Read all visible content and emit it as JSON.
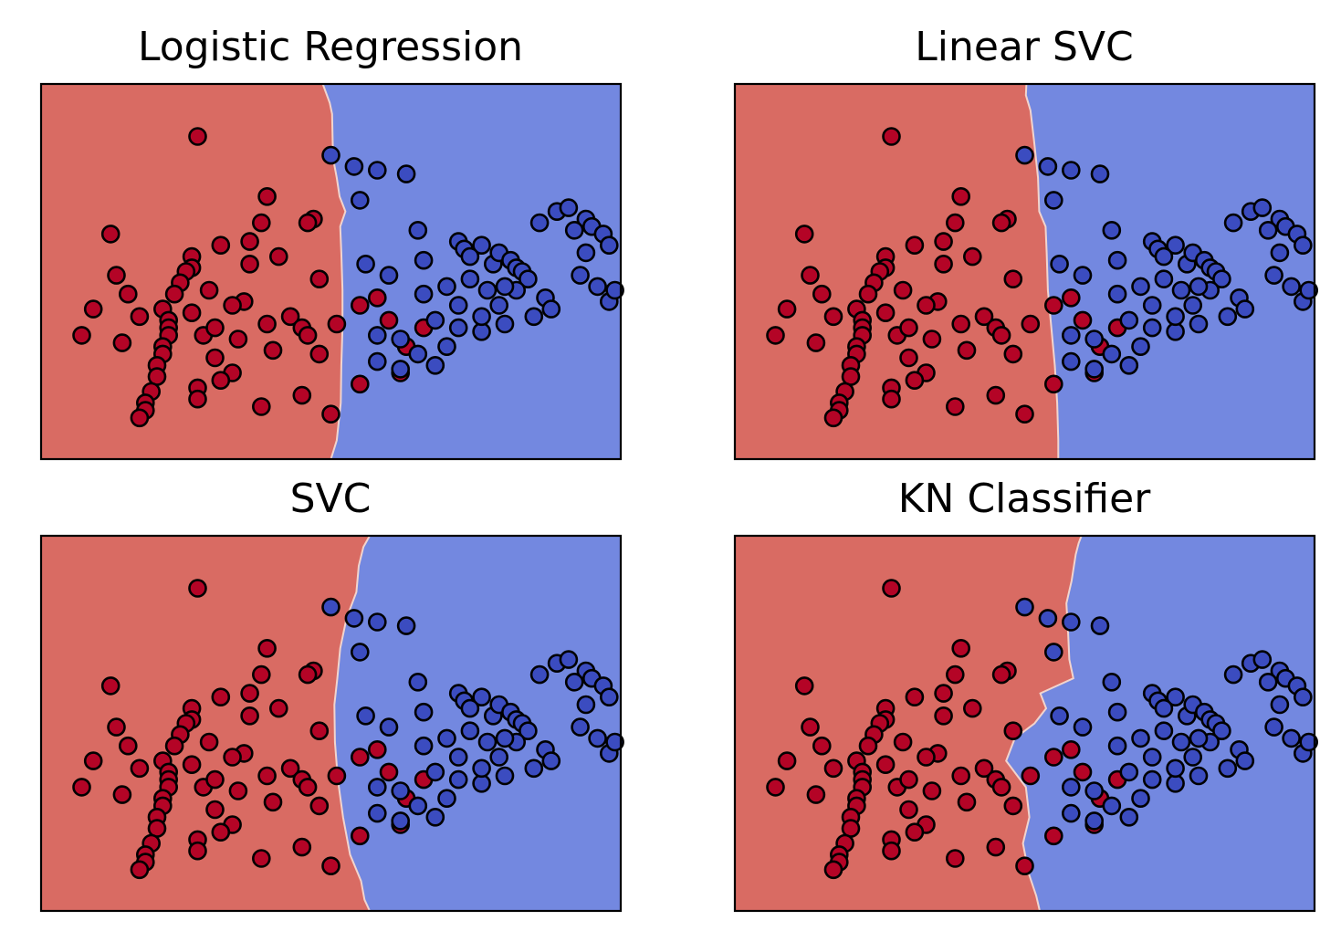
{
  "colors": {
    "class_a_region": "#d96b63",
    "class_b_region": "#7388e0",
    "class_a_point": "#b40426",
    "class_b_point": "#3b4cc0",
    "point_edge": "#000000",
    "boundary": "#f2d4cd",
    "frame": "#000000"
  },
  "chart_data": [
    {
      "type": "scatter",
      "title": "Logistic Regression",
      "xlabel": "",
      "ylabel": "",
      "xlim": [
        0,
        100
      ],
      "ylim": [
        0,
        100
      ],
      "grid": false,
      "ticks": false,
      "decision_regions": {
        "left": "class_a",
        "right": "class_b",
        "boundary": [
          [
            100,
            48.6
          ],
          [
            95,
            49.8
          ],
          [
            92,
            50.2
          ],
          [
            85,
            50.3
          ],
          [
            80,
            50.4
          ],
          [
            75,
            51.0
          ],
          [
            70,
            51.5
          ],
          [
            66,
            52.5
          ],
          [
            62,
            51.6
          ],
          [
            55,
            51.8
          ],
          [
            45,
            52.0
          ],
          [
            35,
            52.0
          ],
          [
            25,
            51.8
          ],
          [
            15,
            51.7
          ],
          [
            5,
            51.0
          ],
          [
            0,
            50.0
          ]
        ]
      }
    },
    {
      "type": "scatter",
      "title": "Linear SVC",
      "xlabel": "",
      "ylabel": "",
      "xlim": [
        0,
        100
      ],
      "ylim": [
        0,
        100
      ],
      "grid": false,
      "ticks": false,
      "decision_regions": {
        "left": "class_a",
        "right": "class_b",
        "boundary": [
          [
            100,
            50.3
          ],
          [
            97,
            50.2
          ],
          [
            93,
            51.0
          ],
          [
            85,
            51.6
          ],
          [
            75,
            52.3
          ],
          [
            66,
            52.5
          ],
          [
            62,
            53.6
          ],
          [
            55,
            53.8
          ],
          [
            45,
            54.0
          ],
          [
            35,
            54.6
          ],
          [
            25,
            55.2
          ],
          [
            15,
            55.6
          ],
          [
            5,
            55.8
          ],
          [
            0,
            55.8
          ]
        ]
      }
    },
    {
      "type": "scatter",
      "title": "SVC",
      "xlabel": "",
      "ylabel": "",
      "xlim": [
        0,
        100
      ],
      "ylim": [
        0,
        100
      ],
      "grid": false,
      "ticks": false,
      "decision_regions": {
        "left": "class_a",
        "right": "class_b",
        "boundary": [
          [
            100,
            56.7
          ],
          [
            97,
            55.6
          ],
          [
            92,
            54.8
          ],
          [
            85,
            54.4
          ],
          [
            78,
            52.7
          ],
          [
            70,
            51.6
          ],
          [
            62,
            51.1
          ],
          [
            55,
            50.6
          ],
          [
            45,
            50.7
          ],
          [
            35,
            51.2
          ],
          [
            25,
            52.1
          ],
          [
            15,
            53.3
          ],
          [
            8,
            55.2
          ],
          [
            3,
            55.8
          ],
          [
            0,
            56.7
          ]
        ]
      }
    },
    {
      "type": "scatter",
      "title": "KN Classifier",
      "xlabel": "",
      "ylabel": "",
      "xlim": [
        0,
        100
      ],
      "ylim": [
        0,
        100
      ],
      "grid": false,
      "ticks": false,
      "decision_regions": {
        "left": "class_a",
        "right": "class_b",
        "boundary": [
          [
            100,
            59.8
          ],
          [
            98,
            59.3
          ],
          [
            95,
            58.8
          ],
          [
            88,
            58.1
          ],
          [
            82,
            57.2
          ],
          [
            74,
            57.5
          ],
          [
            67,
            57.7
          ],
          [
            62,
            58.4
          ],
          [
            58,
            52.7
          ],
          [
            54,
            53.7
          ],
          [
            50,
            51.7
          ],
          [
            46,
            48.3
          ],
          [
            40,
            46.8
          ],
          [
            33,
            50.2
          ],
          [
            25,
            50.8
          ],
          [
            18,
            49.7
          ],
          [
            10,
            50.7
          ],
          [
            4,
            52.0
          ],
          [
            0,
            52.6
          ]
        ]
      }
    }
  ],
  "points": {
    "class_a": [
      [
        27,
        86
      ],
      [
        47,
        64
      ],
      [
        46,
        63
      ],
      [
        39,
        70
      ],
      [
        38,
        63
      ],
      [
        31,
        57
      ],
      [
        26,
        54
      ],
      [
        26,
        51
      ],
      [
        25,
        50
      ],
      [
        24,
        47
      ],
      [
        23,
        44
      ],
      [
        21,
        40
      ],
      [
        22,
        37
      ],
      [
        22,
        35
      ],
      [
        22,
        33
      ],
      [
        21,
        30
      ],
      [
        21,
        28
      ],
      [
        20,
        25
      ],
      [
        20,
        22
      ],
      [
        19,
        18
      ],
      [
        18,
        15
      ],
      [
        18,
        13
      ],
      [
        17,
        11
      ],
      [
        35,
        42
      ],
      [
        43,
        38
      ],
      [
        45,
        35
      ],
      [
        48,
        28
      ],
      [
        46,
        33
      ],
      [
        40,
        29
      ],
      [
        39,
        36
      ],
      [
        34,
        32
      ],
      [
        30,
        27
      ],
      [
        28,
        33
      ],
      [
        33,
        23
      ],
      [
        31,
        21
      ],
      [
        27,
        19
      ],
      [
        27,
        16
      ],
      [
        38,
        14
      ],
      [
        45,
        17
      ],
      [
        50,
        12
      ],
      [
        55,
        20
      ],
      [
        62,
        23
      ],
      [
        63,
        30
      ],
      [
        66,
        35
      ],
      [
        55,
        41
      ],
      [
        58,
        43
      ],
      [
        60,
        37
      ],
      [
        51,
        36
      ],
      [
        48,
        48
      ],
      [
        41,
        54
      ],
      [
        36,
        58
      ],
      [
        36,
        52
      ],
      [
        15,
        44
      ],
      [
        13,
        49
      ],
      [
        12,
        60
      ],
      [
        7,
        33
      ],
      [
        9,
        40
      ],
      [
        26,
        39
      ],
      [
        30,
        35
      ],
      [
        33,
        41
      ],
      [
        17,
        38
      ],
      [
        14,
        31
      ],
      [
        29,
        45
      ]
    ],
    "class_b": [
      [
        50,
        81
      ],
      [
        55,
        69
      ],
      [
        54,
        78
      ],
      [
        58,
        77
      ],
      [
        63,
        76
      ],
      [
        65,
        61
      ],
      [
        72,
        58
      ],
      [
        73,
        56
      ],
      [
        76,
        57
      ],
      [
        74,
        54
      ],
      [
        78,
        52
      ],
      [
        79,
        55
      ],
      [
        81,
        53
      ],
      [
        82,
        51
      ],
      [
        83,
        50
      ],
      [
        84,
        48
      ],
      [
        82,
        45
      ],
      [
        80,
        46
      ],
      [
        86,
        63
      ],
      [
        89,
        66
      ],
      [
        91,
        67
      ],
      [
        94,
        64
      ],
      [
        92,
        61
      ],
      [
        95,
        62
      ],
      [
        97,
        60
      ],
      [
        98,
        57
      ],
      [
        94,
        55
      ],
      [
        93,
        49
      ],
      [
        96,
        46
      ],
      [
        98,
        42
      ],
      [
        99,
        45
      ],
      [
        87,
        43
      ],
      [
        88,
        40
      ],
      [
        85,
        38
      ],
      [
        80,
        36
      ],
      [
        76,
        34
      ],
      [
        70,
        30
      ],
      [
        68,
        25
      ],
      [
        62,
        24
      ],
      [
        58,
        26
      ],
      [
        58,
        33
      ],
      [
        68,
        37
      ],
      [
        72,
        41
      ],
      [
        66,
        44
      ],
      [
        60,
        49
      ],
      [
        56,
        52
      ],
      [
        66,
        53
      ],
      [
        70,
        46
      ],
      [
        74,
        48
      ],
      [
        77,
        45
      ],
      [
        79,
        41
      ],
      [
        76,
        38
      ],
      [
        72,
        35
      ],
      [
        65,
        28
      ],
      [
        62,
        32
      ]
    ]
  }
}
